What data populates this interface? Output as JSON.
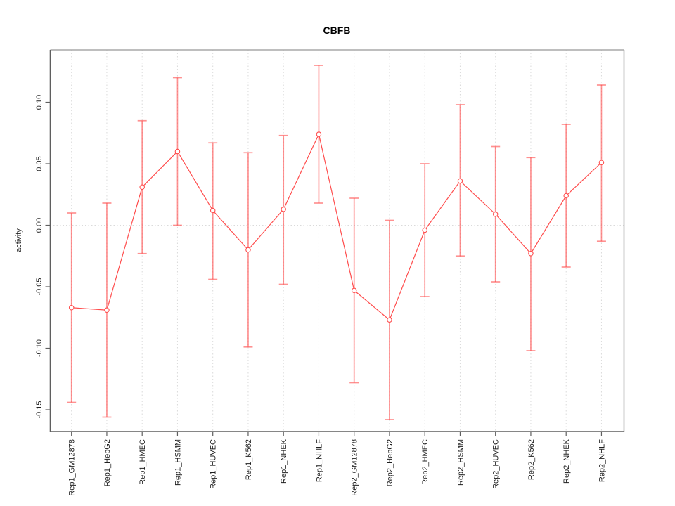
{
  "chart_data": {
    "type": "line",
    "title": "CBFB",
    "xlabel": "",
    "ylabel": "activity",
    "categories": [
      "Rep1_GM12878",
      "Rep1_HepG2",
      "Rep1_HMEC",
      "Rep1_HSMM",
      "Rep1_HUVEC",
      "Rep1_K562",
      "Rep1_NHEK",
      "Rep1_NHLF",
      "Rep2_GM12878",
      "Rep2_HepG2",
      "Rep2_HMEC",
      "Rep2_HSMM",
      "Rep2_HUVEC",
      "Rep2_K562",
      "Rep2_NHEK",
      "Rep2_NHLF"
    ],
    "series": [
      {
        "name": "activity",
        "marker": "open-circle",
        "values": [
          -0.067,
          -0.069,
          0.031,
          0.06,
          0.012,
          -0.02,
          0.013,
          0.074,
          -0.053,
          -0.077,
          -0.004,
          0.036,
          0.009,
          -0.023,
          0.024,
          0.051
        ],
        "error_high": [
          0.01,
          0.018,
          0.085,
          0.12,
          0.067,
          0.059,
          0.073,
          0.13,
          0.022,
          0.004,
          0.05,
          0.098,
          0.064,
          0.055,
          0.082,
          0.114
        ],
        "error_low": [
          -0.144,
          -0.156,
          -0.023,
          0.0,
          -0.044,
          -0.099,
          -0.048,
          0.018,
          -0.128,
          -0.158,
          -0.058,
          -0.025,
          -0.046,
          -0.102,
          -0.034,
          -0.013
        ]
      }
    ],
    "ytick_values": [
      0.1,
      0.05,
      0.0,
      -0.05,
      -0.1,
      -0.15
    ],
    "ytick_labels": [
      "0.10",
      "0.05",
      "0.00",
      "-0.05",
      "-0.10",
      "-0.15"
    ],
    "ylim": [
      -0.168,
      0.143
    ],
    "grid": {
      "vertical": "dotted line at each category",
      "horizontal": "dotted line at y=0 only"
    },
    "legend": "none",
    "colors": {
      "series": "#ff4d4d",
      "error_bar": "rgba(255,77,77,0.62)",
      "grid": "#dadada",
      "box_light": "#a8a8a8",
      "box_dark": "#5f5f5f",
      "text": "#1f1f1f",
      "title": "#000000",
      "background": "#ffffff"
    }
  }
}
